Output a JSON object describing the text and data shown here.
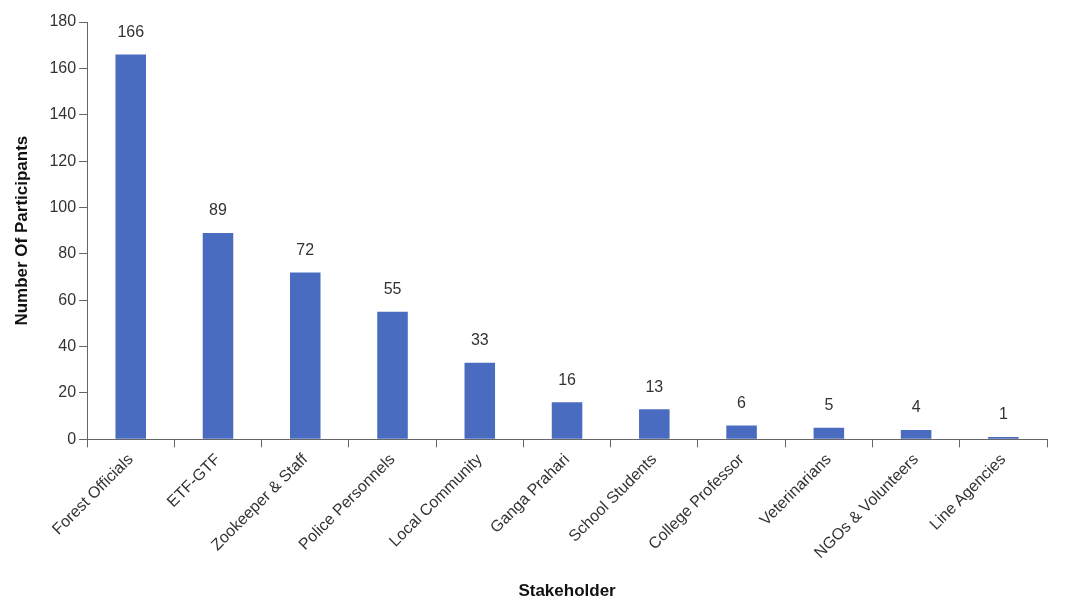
{
  "chart_data": {
    "type": "bar",
    "xlabel": "Stakeholder",
    "ylabel": "Number Of Participants",
    "categories": [
      "Forest Officials",
      "ETF-GTF",
      "Zookeeper & Staff",
      "Police Personnels",
      "Local Community",
      "Ganga Prahari",
      "School Students",
      "College Professor",
      "Veterinarians",
      "NGOs & Volunteers",
      "Line Agencies"
    ],
    "values": [
      166,
      89,
      72,
      55,
      33,
      16,
      13,
      6,
      5,
      4,
      1
    ],
    "color": "#4a6cc0",
    "ylim": [
      0,
      180
    ],
    "yticks": [
      0,
      20,
      40,
      60,
      80,
      100,
      120,
      140,
      160,
      180
    ],
    "data_labels": true
  }
}
